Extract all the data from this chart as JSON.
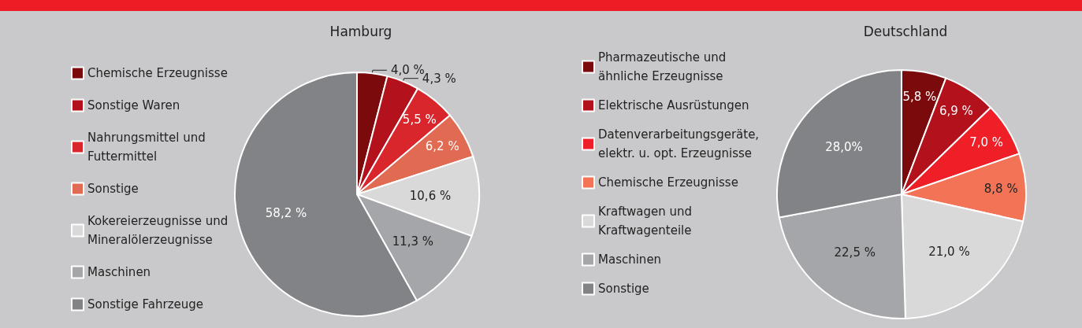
{
  "chart_data": [
    {
      "type": "pie",
      "title": "Hamburg",
      "legend": "left",
      "categories": [
        "Chemische Erzeugnisse",
        "Sonstige Waren",
        "Nahrungsmittel und Futtermittel",
        "Sonstige",
        "Kokereierzeugnisse und Mineralölerzeugnisse",
        "Maschinen",
        "Sonstige Fahrzeuge"
      ],
      "values": [
        4.0,
        4.3,
        5.5,
        6.2,
        10.6,
        11.3,
        58.2
      ],
      "value_labels": [
        "4,0 %",
        "4,3 %",
        "5,5 %",
        "6,2 %",
        "10,6 %",
        "11,3 %",
        "58,2 %"
      ],
      "colors": [
        "#7a0a0c",
        "#b3121c",
        "#d9262d",
        "#e06a52",
        "#d9d9da",
        "#a5a6a9",
        "#828387"
      ]
    },
    {
      "type": "pie",
      "title": "Deutschland",
      "legend": "left",
      "categories": [
        "Pharmazeutische und ähnliche Erzeugnisse",
        "Elektrische Ausrüstungen",
        "Datenverarbeitungsgeräte, elektr. u. opt. Erzeugnisse",
        "Chemische Erzeugnisse",
        "Kraftwagen und Kraftwagenteile",
        "Maschinen",
        "Sonstige"
      ],
      "values": [
        5.8,
        6.9,
        7.0,
        8.8,
        21.0,
        22.5,
        28.0
      ],
      "value_labels": [
        "5,8 %",
        "6,9 %",
        "7,0 %",
        "8,8 %",
        "21,0 %",
        "22,5 %",
        "28,0%"
      ],
      "colors": [
        "#7a0a0c",
        "#b3121c",
        "#ee1f26",
        "#f27355",
        "#d9d9da",
        "#a5a6a9",
        "#828387"
      ]
    }
  ]
}
